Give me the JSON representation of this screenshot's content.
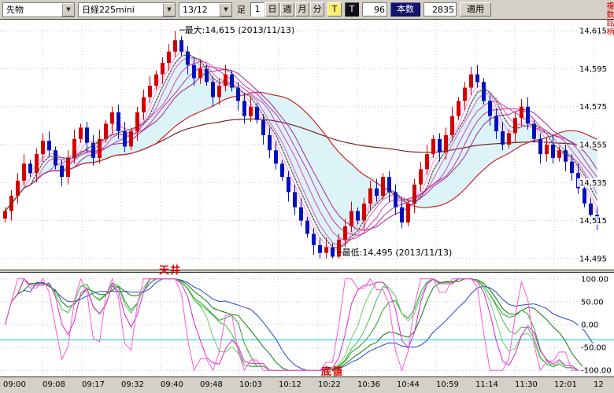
{
  "toolbar": {
    "instrument_type": "先物",
    "instrument": "日経225mini",
    "contract_month": "13/12",
    "ashi_label": "足",
    "period_buttons": [
      "1",
      "日",
      "週",
      "月",
      "分"
    ],
    "tick_button_yellow": "T",
    "tick_button_dark": "T",
    "interval_value": "96",
    "bars_label": "本数",
    "bars_value": "2835",
    "apply_label": "適用",
    "multi_symbol_label": "複数銘柄"
  },
  "price_panel": {
    "y_axis_labels": [
      "14,615",
      "14,595",
      "14,575",
      "14,555",
      "14,535",
      "14,515",
      "14,495"
    ],
    "max_annotation": "─最大:14,615 (2013/11/13)",
    "min_annotation": "─最低:14,495 (2013/11/13)"
  },
  "oscillator_panel": {
    "y_axis_labels": [
      "100.00",
      "50.00",
      "0.00",
      "-50.00",
      "-100.00"
    ],
    "ceiling_label": "天井",
    "bottom_label": "底値"
  },
  "time_axis_labels": [
    "09:00",
    "09:08",
    "09:17",
    "09:32",
    "09:40",
    "09:48",
    "10:03",
    "10:12",
    "10:22",
    "10:36",
    "10:44",
    "10:59",
    "11:14",
    "11:30",
    "12:01",
    "12"
  ],
  "chart_data": {
    "type": "candlestick",
    "title": "日経225mini 13/12 1分足",
    "price": {
      "ylim": [
        14490,
        14620
      ],
      "grid_values": [
        14615,
        14595,
        14575,
        14555,
        14535,
        14515,
        14495
      ],
      "session_high": 14615,
      "session_low": 14495,
      "high_date": "2013/11/13",
      "low_date": "2013/11/13",
      "closes": [
        14520,
        14528,
        14536,
        14545,
        14540,
        14550,
        14557,
        14552,
        14544,
        14538,
        14548,
        14558,
        14564,
        14556,
        14548,
        14558,
        14566,
        14572,
        14562,
        14554,
        14562,
        14572,
        14580,
        14586,
        14592,
        14598,
        14604,
        14610,
        14604,
        14597,
        14590,
        14595,
        14588,
        14580,
        14586,
        14592,
        14585,
        14578,
        14570,
        14575,
        14568,
        14560,
        14552,
        14545,
        14538,
        14530,
        14522,
        14515,
        14508,
        14502,
        14498,
        14501,
        14496,
        14505,
        14512,
        14520,
        14515,
        14524,
        14532,
        14528,
        14538,
        14530,
        14522,
        14514,
        14524,
        14534,
        14542,
        14550,
        14558,
        14551,
        14560,
        14570,
        14578,
        14585,
        14592,
        14588,
        14578,
        14570,
        14562,
        14555,
        14561,
        14569,
        14575,
        14566,
        14558,
        14550,
        14555,
        14548,
        14552,
        14546,
        14540,
        14532,
        14524,
        14518,
        14514
      ]
    },
    "overlays": {
      "ma_ribbon_periods": [
        3,
        4,
        5,
        6,
        8,
        10,
        12
      ],
      "green_ma_period": 5,
      "red_ma_period": 25,
      "maroon_ma_period": 70
    },
    "oscillator": {
      "type": "stochastic-ribbon",
      "ylim": [
        -110,
        110
      ],
      "reference_line": -33,
      "series": [
        {
          "period": 40,
          "smooth": 5,
          "color": "#2244cc"
        },
        {
          "period": 24,
          "smooth": 4,
          "color": "#0b7a0b"
        },
        {
          "period": 18,
          "smooth": 3,
          "color": "#22a022"
        },
        {
          "period": 15,
          "smooth": 3,
          "color": "#44bb44"
        },
        {
          "period": 12,
          "smooth": 3,
          "color": "#66cc66"
        },
        {
          "period": 8,
          "smooth": 3,
          "color": "#dd22cc"
        },
        {
          "period": 5,
          "smooth": 2,
          "color": "#ff55dd"
        }
      ]
    },
    "colors": {
      "candle_up": "#d40000",
      "candle_down": "#0011bb",
      "cloud": "#d6f1f6",
      "green_ma": "#007700",
      "red_ma": "#cc2222",
      "maroon_ma": "#7a2020",
      "ribbon": [
        "#ffaaee",
        "#ff88e6",
        "#f46ad8",
        "#e854c8",
        "#d842b8",
        "#c232a8",
        "#aa2298"
      ],
      "reference_line": "#00c8e8",
      "annotation_red": "#dd0000"
    }
  }
}
